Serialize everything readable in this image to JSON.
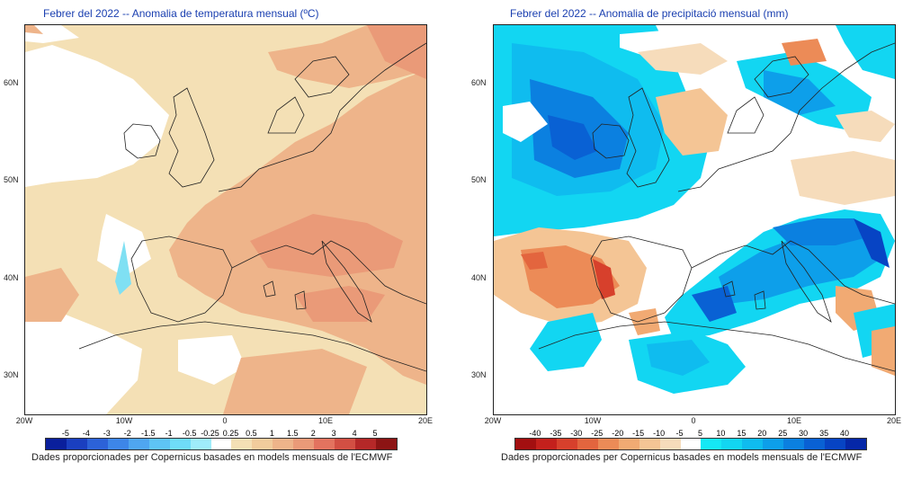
{
  "left": {
    "title": "Febrer del 2022 -- Anomalia de temperatura mensual (ºC)",
    "lat_labels": [
      "60N",
      "50N",
      "40N",
      "30N"
    ],
    "lon_labels": [
      "20W",
      "10W",
      "0",
      "10E",
      "20E"
    ],
    "colorbar_labels": [
      "-5",
      "-4",
      "-3",
      "-2",
      "-1.5",
      "-1",
      "-0.5",
      "-0.25",
      "0.25",
      "0.5",
      "1",
      "1.5",
      "2",
      "3",
      "4",
      "5"
    ],
    "colorbar_colors": [
      "#0a1f9c",
      "#1a3fc0",
      "#2c62d8",
      "#3d86e8",
      "#4fa6f0",
      "#5ec4f5",
      "#6fdcf8",
      "#9fecfa",
      "#ffffff",
      "#f4e0b5",
      "#f1cc9c",
      "#eeb48a",
      "#ea9a78",
      "#e3735f",
      "#d24f43",
      "#b52828",
      "#8c1414"
    ],
    "credit": "Dades proporcionades per Copernicus basades en models mensuals de l'ECMWF"
  },
  "right": {
    "title": "Febrer del 2022 -- Anomalia de precipitació mensual (mm)",
    "lat_labels": [
      "60N",
      "50N",
      "40N",
      "30N"
    ],
    "lon_labels": [
      "20W",
      "10W",
      "0",
      "10E",
      "20E"
    ],
    "colorbar_labels": [
      "-40",
      "-35",
      "-30",
      "-25",
      "-20",
      "-15",
      "-10",
      "-5",
      "5",
      "10",
      "15",
      "20",
      "25",
      "30",
      "35",
      "40"
    ],
    "colorbar_colors": [
      "#a30f10",
      "#c4201c",
      "#d7402c",
      "#e3653e",
      "#ec8b57",
      "#f1aa73",
      "#f4c595",
      "#f6dcbb",
      "#ffffff",
      "#15e8f5",
      "#12d6f2",
      "#0fbcef",
      "#0d9fea",
      "#0b80e0",
      "#0961d4",
      "#0744c4",
      "#0527a8"
    ],
    "credit": "Dades proporcionades per Copernicus basades en models mensuals de l'ECMWF"
  }
}
